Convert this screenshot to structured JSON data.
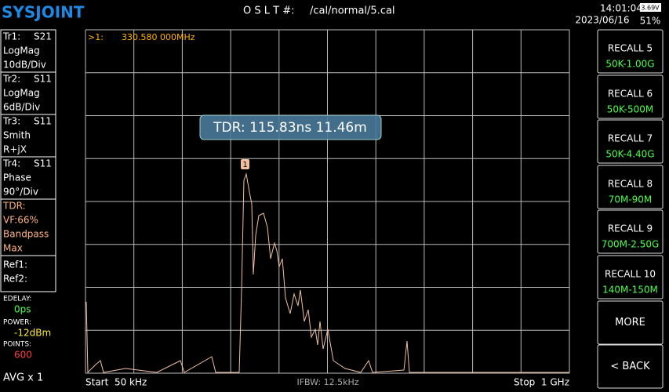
{
  "header": {
    "logo": "SYSJOINT",
    "cal_label": "O S L T #:",
    "cal_file": "/cal/normal/5.cal",
    "time": "14:01:04",
    "date": "2023/06/16",
    "battery_voltage": "3.69V",
    "battery_percent": "51%"
  },
  "traces": [
    {
      "id": "Tr1:",
      "param": "S21",
      "format": "LogMag",
      "scale": "10dB/Div"
    },
    {
      "id": "Tr2:",
      "param": "S11",
      "format": "LogMag",
      "scale": "6dB/Div"
    },
    {
      "id": "Tr3:",
      "param": "S11",
      "format": "Smith",
      "scale": "R+jX"
    },
    {
      "id": "Tr4:",
      "param": "S11",
      "format": "Phase",
      "scale": "90°/Div"
    }
  ],
  "tdr_panel": [
    "TDR:",
    "VF:66%",
    "Bandpass",
    "Max"
  ],
  "refs": [
    "Ref1:",
    "Ref2:"
  ],
  "status": {
    "edelay_label": "EDELAY:",
    "edelay": "0ps",
    "power_label": "POWER:",
    "power": "-12dBm",
    "points_label": "POINTS:",
    "points": "600",
    "avg": "AVG x 1"
  },
  "plot": {
    "marker_label": ">1:",
    "marker_freq": "330.580 000MHz",
    "marker_tag": "1",
    "tdr_readout": "TDR: 115.83ns 11.46m",
    "start": "Start  50 kHz",
    "ifbw": "IFBW: 12.5kHz",
    "stop": "Stop  1 GHz"
  },
  "buttons": [
    {
      "label": "RECALL 5",
      "sub": "50K-1.00G"
    },
    {
      "label": "RECALL 6",
      "sub": "50K-500M"
    },
    {
      "label": "RECALL 7",
      "sub": "50K-4.40G"
    },
    {
      "label": "RECALL 8",
      "sub": "70M-90M"
    },
    {
      "label": "RECALL 9",
      "sub": "700M-2.50G"
    },
    {
      "label": "RECALL 10",
      "sub": "140M-150M"
    },
    {
      "label": "MORE"
    },
    {
      "label": "< BACK"
    }
  ]
}
